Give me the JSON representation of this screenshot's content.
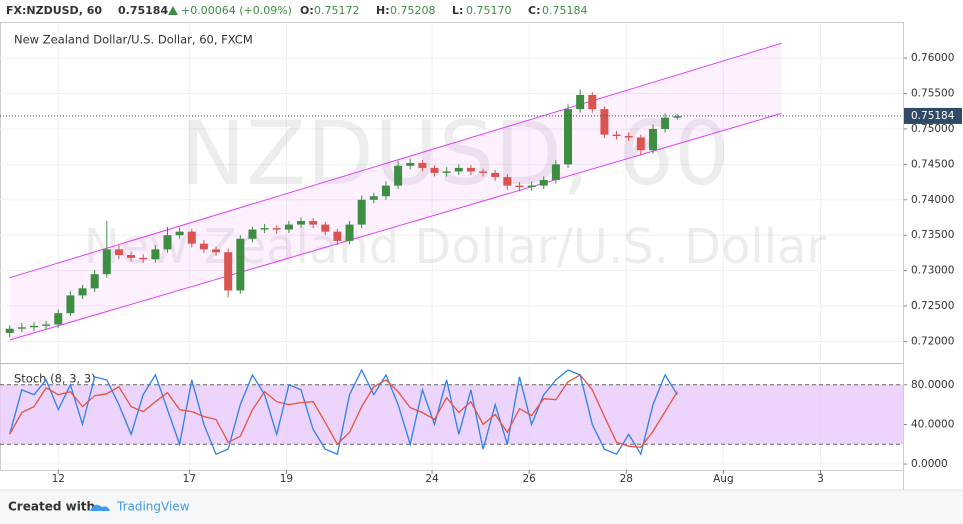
{
  "header": {
    "symbol": "FX:NZDUSD, 60",
    "last": "0.75184",
    "change": "+0.00064 (+0.09%)",
    "ohlc": [
      {
        "label": "O:",
        "value": "0.75172"
      },
      {
        "label": "H:",
        "value": "0.75208"
      },
      {
        "label": "L:",
        "value": "0.75170"
      },
      {
        "label": "C:",
        "value": "0.75184"
      }
    ]
  },
  "footer": {
    "created": "Created with",
    "brand": "TradingView"
  },
  "chart_data": [
    {
      "type": "candlestick",
      "title": "New Zealand Dollar/U.S. Dollar, 60, FXCM",
      "watermark": [
        "NZDUSD, 60",
        "New Zealand Dollar/U.S. Dollar"
      ],
      "up_color": "#3e8e41",
      "down_color": "#d9534f",
      "x": [
        0,
        0.25,
        0.5,
        0.75,
        1,
        1.25,
        1.5,
        1.75,
        2,
        2.25,
        2.5,
        2.75,
        3,
        3.25,
        3.5,
        3.75,
        4,
        4.25,
        4.5,
        4.75,
        5,
        5.25,
        5.5,
        5.75,
        6,
        6.25,
        6.5,
        6.75,
        7,
        7.25,
        7.5,
        7.75,
        8,
        8.25,
        8.5,
        8.75,
        9,
        9.25,
        9.5,
        9.75,
        10,
        10.25,
        10.5,
        10.75,
        11,
        11.25,
        11.5,
        11.75,
        12,
        12.25,
        12.5,
        12.75,
        13,
        13.25,
        13.5,
        13.75
      ],
      "series": [
        {
          "name": "open",
          "values": [
            0.7212,
            0.7218,
            0.722,
            0.7222,
            0.7224,
            0.724,
            0.7265,
            0.7275,
            0.7295,
            0.733,
            0.7322,
            0.7318,
            0.7316,
            0.733,
            0.735,
            0.7355,
            0.7338,
            0.733,
            0.7326,
            0.7272,
            0.7345,
            0.7358,
            0.736,
            0.7358,
            0.7365,
            0.737,
            0.7365,
            0.7355,
            0.7342,
            0.7365,
            0.74,
            0.7405,
            0.742,
            0.7448,
            0.7452,
            0.7445,
            0.7438,
            0.744,
            0.7445,
            0.744,
            0.7438,
            0.7432,
            0.742,
            0.7418,
            0.742,
            0.7428,
            0.745,
            0.7528,
            0.7548,
            0.7528,
            0.7492,
            0.749,
            0.7488,
            0.747,
            0.75,
            0.7516
          ]
        },
        {
          "name": "high",
          "values": [
            0.7223,
            0.7226,
            0.7227,
            0.7229,
            0.7245,
            0.7271,
            0.728,
            0.7301,
            0.737,
            0.7336,
            0.7327,
            0.7323,
            0.7336,
            0.7362,
            0.7361,
            0.7359,
            0.7343,
            0.7334,
            0.7331,
            0.735,
            0.7362,
            0.7366,
            0.7364,
            0.737,
            0.7375,
            0.7374,
            0.7369,
            0.7359,
            0.737,
            0.7406,
            0.741,
            0.7426,
            0.7455,
            0.7458,
            0.7456,
            0.7449,
            0.7446,
            0.745,
            0.7449,
            0.7444,
            0.7442,
            0.7436,
            0.7425,
            0.7426,
            0.7433,
            0.7456,
            0.7535,
            0.7556,
            0.7552,
            0.7532,
            0.7497,
            0.7495,
            0.7492,
            0.7506,
            0.7522,
            0.7521
          ]
        },
        {
          "name": "low",
          "values": [
            0.7206,
            0.7213,
            0.7215,
            0.7217,
            0.7219,
            0.7236,
            0.726,
            0.727,
            0.729,
            0.7316,
            0.7313,
            0.7311,
            0.7311,
            0.7325,
            0.7345,
            0.7333,
            0.7325,
            0.7321,
            0.7262,
            0.7267,
            0.734,
            0.7353,
            0.7352,
            0.7353,
            0.736,
            0.736,
            0.735,
            0.7336,
            0.7337,
            0.736,
            0.7395,
            0.74,
            0.7415,
            0.7443,
            0.744,
            0.7433,
            0.7433,
            0.7435,
            0.7435,
            0.7433,
            0.7427,
            0.7414,
            0.7412,
            0.7413,
            0.7415,
            0.7423,
            0.7445,
            0.7523,
            0.7523,
            0.7487,
            0.7485,
            0.7483,
            0.7463,
            0.7465,
            0.7495,
            0.7513
          ]
        },
        {
          "name": "close",
          "values": [
            0.7218,
            0.722,
            0.7222,
            0.7224,
            0.724,
            0.7265,
            0.7275,
            0.7295,
            0.733,
            0.7322,
            0.7318,
            0.7316,
            0.733,
            0.735,
            0.7355,
            0.7338,
            0.733,
            0.7326,
            0.7272,
            0.7345,
            0.7358,
            0.736,
            0.7358,
            0.7365,
            0.737,
            0.7365,
            0.7355,
            0.7342,
            0.7365,
            0.74,
            0.7405,
            0.742,
            0.7448,
            0.7452,
            0.7445,
            0.7438,
            0.744,
            0.7445,
            0.744,
            0.7438,
            0.7432,
            0.742,
            0.7418,
            0.742,
            0.7428,
            0.745,
            0.7528,
            0.7548,
            0.7528,
            0.7492,
            0.749,
            0.7488,
            0.747,
            0.75,
            0.7516,
            0.7518
          ]
        }
      ],
      "channel": {
        "x": [
          0,
          15.9
        ],
        "upper": [
          0.729,
          0.7621
        ],
        "lower": [
          0.7202,
          0.7522
        ],
        "color": "#e040fb"
      },
      "last_price": 0.75184,
      "xlim": [
        -0.2,
        18.4
      ],
      "xticks": [
        {
          "value": 1.0,
          "label": "12"
        },
        {
          "value": 3.7,
          "label": "17"
        },
        {
          "value": 5.7,
          "label": "19"
        },
        {
          "value": 8.7,
          "label": "24"
        },
        {
          "value": 10.7,
          "label": "26"
        },
        {
          "value": 12.7,
          "label": "28"
        },
        {
          "value": 14.7,
          "label": "Aug"
        },
        {
          "value": 16.7,
          "label": "3"
        }
      ],
      "ylim": [
        0.7171,
        0.7651
      ],
      "yticks": [
        {
          "value": 0.72,
          "label": "0.72000"
        },
        {
          "value": 0.725,
          "label": "0.72500"
        },
        {
          "value": 0.73,
          "label": "0.73000"
        },
        {
          "value": 0.735,
          "label": "0.73500"
        },
        {
          "value": 0.74,
          "label": "0.74000"
        },
        {
          "value": 0.745,
          "label": "0.74500"
        },
        {
          "value": 0.75,
          "label": "0.75000"
        },
        {
          "value": 0.755,
          "label": "0.75500"
        },
        {
          "value": 0.76,
          "label": "0.76000"
        }
      ],
      "grid": true
    },
    {
      "type": "line",
      "title": "Stoch (8, 3, 3)",
      "x": [
        0,
        0.25,
        0.5,
        0.75,
        1,
        1.25,
        1.5,
        1.75,
        2,
        2.25,
        2.5,
        2.75,
        3,
        3.25,
        3.5,
        3.75,
        4,
        4.25,
        4.5,
        4.75,
        5,
        5.25,
        5.5,
        5.75,
        6,
        6.25,
        6.5,
        6.75,
        7,
        7.25,
        7.5,
        7.75,
        8,
        8.25,
        8.5,
        8.75,
        9,
        9.25,
        9.5,
        9.75,
        10,
        10.25,
        10.5,
        10.75,
        11,
        11.25,
        11.5,
        11.75,
        12,
        12.25,
        12.5,
        12.75,
        13,
        13.25,
        13.5,
        13.75
      ],
      "series": [
        {
          "name": "%K",
          "color": "#2f80ed",
          "values": [
            30,
            75,
            70,
            85,
            55,
            80,
            40,
            88,
            85,
            60,
            30,
            70,
            90,
            55,
            20,
            85,
            40,
            10,
            15,
            60,
            90,
            70,
            30,
            80,
            75,
            35,
            15,
            10,
            70,
            95,
            70,
            90,
            60,
            20,
            75,
            40,
            85,
            30,
            75,
            15,
            60,
            20,
            88,
            40,
            70,
            85,
            95,
            90,
            40,
            15,
            10,
            30,
            10,
            60,
            90,
            70
          ]
        },
        {
          "name": "%D",
          "color": "#e8533f",
          "values": [
            30,
            52,
            58,
            77,
            70,
            73,
            58,
            69,
            71,
            78,
            58,
            53,
            63,
            72,
            55,
            53,
            48,
            45,
            22,
            28,
            55,
            73,
            63,
            60,
            62,
            63,
            42,
            20,
            32,
            58,
            78,
            85,
            73,
            57,
            52,
            45,
            67,
            52,
            63,
            40,
            50,
            32,
            56,
            49,
            66,
            65,
            83,
            90,
            75,
            48,
            22,
            18,
            17,
            33,
            53,
            73
          ]
        }
      ],
      "band": [
        20,
        80
      ],
      "band_color": "#e7c9fb",
      "ylim": [
        -6,
        100
      ],
      "yticks": [
        {
          "value": 0,
          "label": "0.0000"
        },
        {
          "value": 40,
          "label": "40.0000"
        },
        {
          "value": 80,
          "label": "80.0000"
        }
      ],
      "grid": true
    }
  ]
}
